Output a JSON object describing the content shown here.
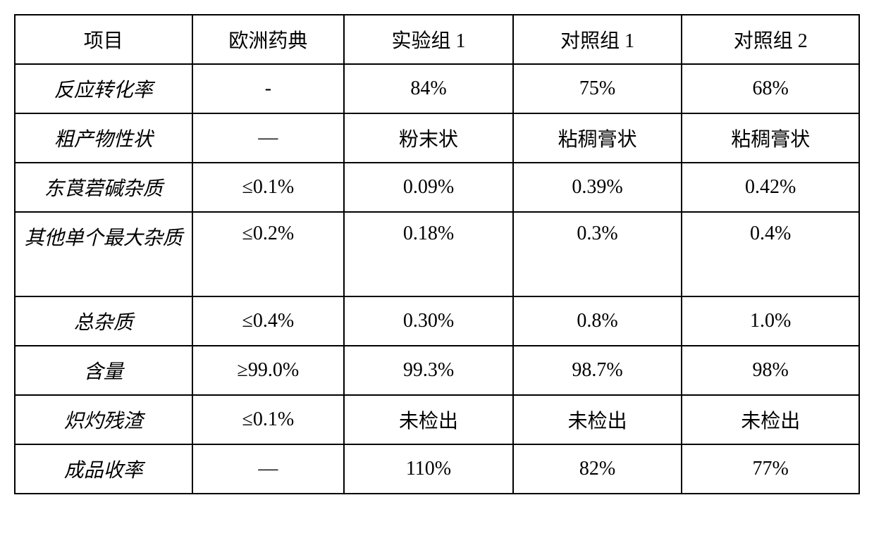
{
  "table": {
    "type": "table",
    "background_color": "#ffffff",
    "border_color": "#000000",
    "border_width": 2,
    "text_color": "#000000",
    "header_fontsize": 28,
    "cell_fontsize": 28,
    "font_family_header": "SimSun",
    "font_family_label": "KaiTi",
    "column_widths_pct": [
      21,
      18,
      20,
      20,
      21
    ],
    "columns": [
      "项目",
      "欧洲药典",
      "实验组 1",
      "对照组 1",
      "对照组 2"
    ],
    "rows": [
      {
        "label": "反应转化率",
        "cells": [
          "-",
          "84%",
          "75%",
          "68%"
        ]
      },
      {
        "label": "粗产物性状",
        "cells": [
          "—",
          "粉末状",
          "粘稠膏状",
          "粘稠膏状"
        ]
      },
      {
        "label": "东莨菪碱杂质",
        "cells": [
          "≤0.1%",
          "0.09%",
          "0.39%",
          "0.42%"
        ]
      },
      {
        "label": "其他单个最大杂质",
        "cells": [
          "≤0.2%",
          "0.18%",
          "0.3%",
          "0.4%"
        ],
        "tall": true
      },
      {
        "label": "总杂质",
        "cells": [
          "≤0.4%",
          "0.30%",
          "0.8%",
          "1.0%"
        ]
      },
      {
        "label": "含量",
        "cells": [
          "≥99.0%",
          "99.3%",
          "98.7%",
          "98%"
        ]
      },
      {
        "label": "炽灼残渣",
        "cells": [
          "≤0.1%",
          "未检出",
          "未检出",
          "未检出"
        ]
      },
      {
        "label": "成品收率",
        "cells": [
          "—",
          "110%",
          "82%",
          "77%"
        ]
      }
    ]
  }
}
